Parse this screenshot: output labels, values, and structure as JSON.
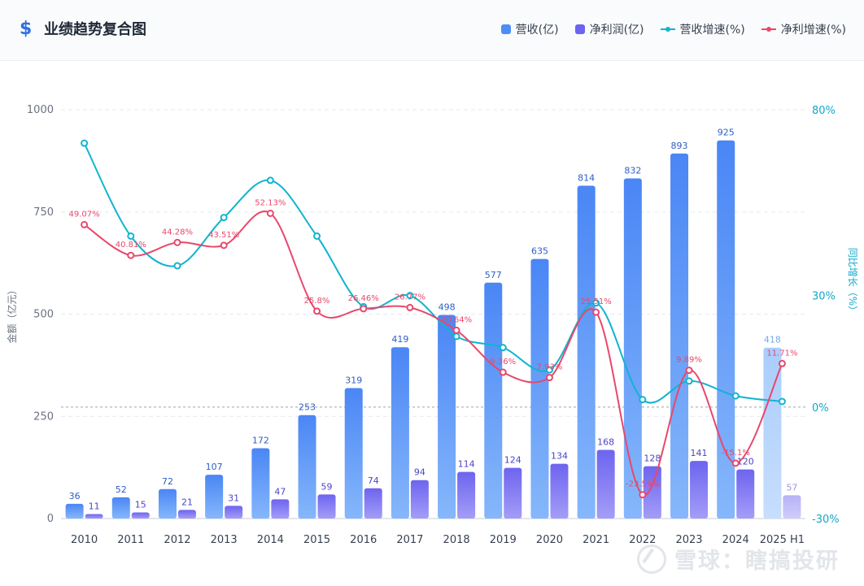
{
  "header": {
    "icon": "dollar-icon",
    "title": "业绩趋势复合图"
  },
  "legend": [
    {
      "label": "营收(亿)",
      "kind": "bar",
      "color": "#4d8ef6"
    },
    {
      "label": "净利润(亿)",
      "kind": "bar",
      "color": "#6c63f0"
    },
    {
      "label": "营收增速(%)",
      "kind": "line",
      "color": "#11b4cf"
    },
    {
      "label": "净利增速(%)",
      "kind": "line",
      "color": "#e8486b"
    }
  ],
  "chart_data": {
    "type": "bar",
    "title": "业绩趋势复合图",
    "categories": [
      "2010",
      "2011",
      "2012",
      "2013",
      "2014",
      "2015",
      "2016",
      "2017",
      "2018",
      "2019",
      "2020",
      "2021",
      "2022",
      "2023",
      "2024",
      "2025 H1"
    ],
    "series": [
      {
        "name": "营收(亿)",
        "type": "bar",
        "axis": "left",
        "values": [
          36,
          52,
          72,
          107,
          172,
          253,
          319,
          419,
          498,
          577,
          635,
          814,
          832,
          893,
          925,
          418
        ],
        "labels": [
          "36",
          "52",
          "72",
          "107",
          "172",
          "253",
          "319",
          "419",
          "498",
          "577",
          "635",
          "814",
          "832",
          "893",
          "925",
          "418"
        ]
      },
      {
        "name": "净利润(亿)",
        "type": "bar",
        "axis": "left",
        "values": [
          11,
          15,
          21,
          31,
          47,
          59,
          74,
          94,
          114,
          124,
          134,
          168,
          128,
          141,
          120,
          57
        ],
        "labels": [
          "11",
          "15",
          "21",
          "31",
          "47",
          "59",
          "74",
          "94",
          "114",
          "124",
          "134",
          "168",
          "128",
          "141",
          "120",
          "57"
        ]
      },
      {
        "name": "营收增速(%)",
        "type": "line",
        "axis": "right",
        "values": [
          71,
          46,
          38,
          51,
          61,
          46,
          27,
          30,
          19,
          16,
          10,
          28,
          2,
          7,
          3,
          1.5
        ]
      },
      {
        "name": "净利增速(%)",
        "type": "line",
        "axis": "right",
        "values": [
          49.07,
          40.81,
          44.28,
          43.51,
          52.13,
          25.8,
          26.46,
          26.77,
          20.64,
          9.36,
          7.93,
          25.51,
          -23.59,
          9.89,
          -15.1,
          11.71
        ],
        "labels": [
          "49.07%",
          "40.81%",
          "44.28%",
          "43.51%",
          "52.13%",
          "25.8%",
          "26.46%",
          "26.77%",
          "20.64%",
          "9.36%",
          "7.93%",
          "25.51%",
          "-23.59%",
          "9.89%",
          "-15.1%",
          "11.71%"
        ]
      }
    ],
    "ylabel": "金额（亿元）",
    "ylim": [
      0,
      1000
    ],
    "yticks": [
      "0",
      "250",
      "500",
      "750",
      "1000"
    ],
    "y2label": "同比增长（%）",
    "y2lim": [
      -30,
      80
    ],
    "y2ticks": [
      "-30%",
      "0%",
      "30%",
      "80%"
    ],
    "y2tick_values": [
      -30,
      0,
      30,
      80
    ],
    "zero_line": true,
    "grid": true,
    "legend_position": "top-right",
    "partial_year": "2025 H1"
  },
  "watermark": {
    "text": "雪球：瞎搞投研",
    "icon": "snowball-logo-icon"
  }
}
